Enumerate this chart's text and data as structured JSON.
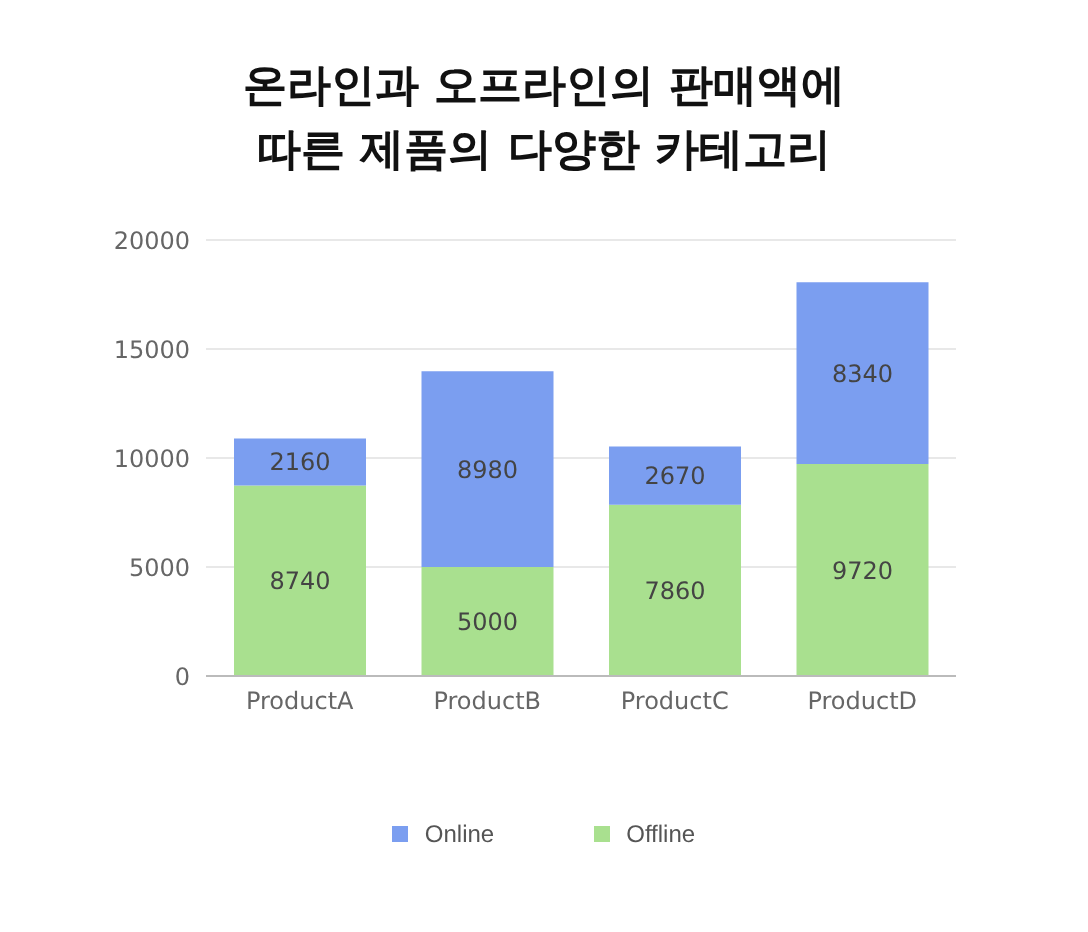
{
  "chart_data": {
    "type": "bar",
    "title": "온라인과 오프라인의 판매액에\n따른 제품의 다양한 카테고리",
    "categories": [
      "ProductA",
      "ProductB",
      "ProductC",
      "ProductD"
    ],
    "stacked": true,
    "series": [
      {
        "name": "Offline",
        "color": "#a9e08f",
        "values": [
          8740,
          5000,
          7860,
          9720
        ]
      },
      {
        "name": "Online",
        "color": "#7b9ef0",
        "values": [
          2160,
          8980,
          2670,
          8340
        ]
      }
    ],
    "ylim": [
      0,
      20000
    ],
    "yticks": [
      0,
      5000,
      10000,
      15000,
      20000
    ],
    "grid": "y",
    "legend": "bottom",
    "data_labels": true
  }
}
